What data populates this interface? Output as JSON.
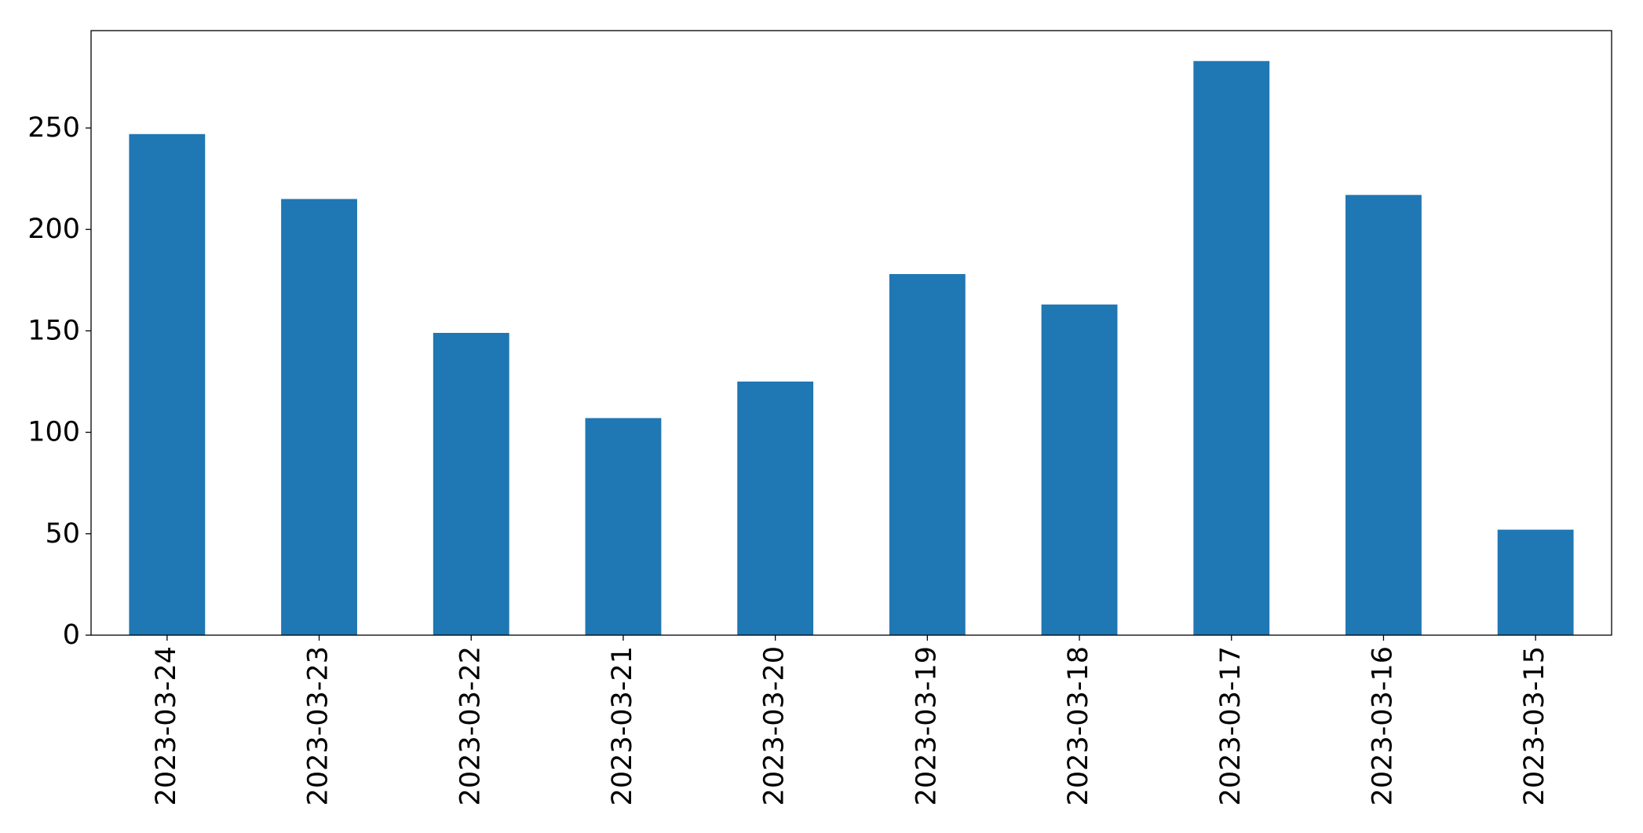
{
  "chart_data": {
    "type": "bar",
    "categories": [
      "2023-03-24",
      "2023-03-23",
      "2023-03-22",
      "2023-03-21",
      "2023-03-20",
      "2023-03-19",
      "2023-03-18",
      "2023-03-17",
      "2023-03-16",
      "2023-03-15"
    ],
    "values": [
      247,
      215,
      149,
      107,
      125,
      178,
      163,
      283,
      217,
      52
    ],
    "color": "#1f77b4",
    "ylim": [
      0,
      298
    ],
    "yticks": [
      0,
      50,
      100,
      150,
      200,
      250
    ],
    "grid": false
  }
}
